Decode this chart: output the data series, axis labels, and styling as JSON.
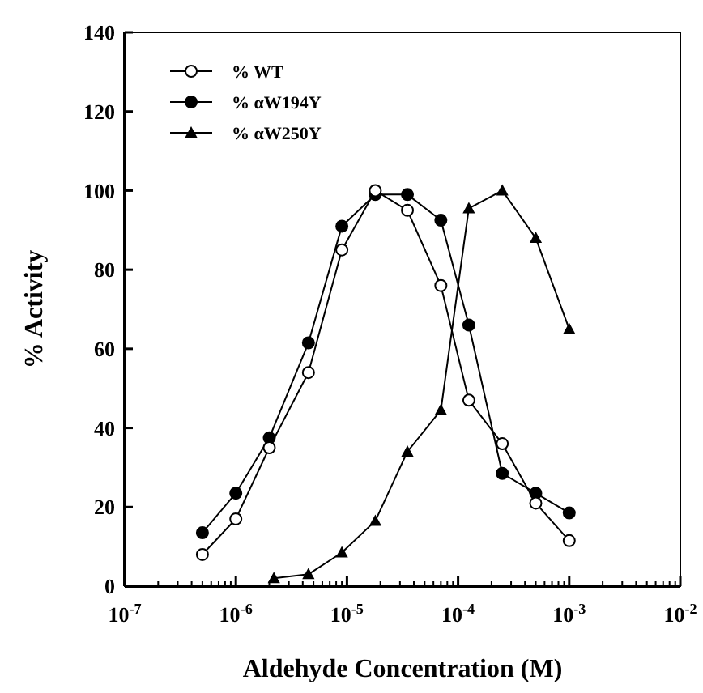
{
  "chart_data": {
    "type": "line",
    "xlabel": "Aldehyde Concentration (M)",
    "ylabel": "% Activity",
    "log": "x",
    "xlim": [
      1e-07,
      0.01
    ],
    "xticks": [
      {
        "value": 1e-07,
        "label": "10$^{-7}$"
      },
      {
        "value": 1e-06,
        "label": "10$^{-6}$"
      },
      {
        "value": 1e-05,
        "label": "10$^{-5}$"
      },
      {
        "value": 0.0001,
        "label": "10$^{-4}$"
      },
      {
        "value": 0.001,
        "label": "10$^{-3}$"
      },
      {
        "value": 0.01,
        "label": "10$^{-2}$"
      }
    ],
    "ylim": [
      0,
      140
    ],
    "yticks": [
      0,
      20,
      40,
      60,
      80,
      100,
      120,
      140
    ],
    "grid": false,
    "legend": "top left",
    "line_style": "solid",
    "x": [
      5e-07,
      1e-06,
      2e-06,
      4.5e-06,
      9e-06,
      1.8e-05,
      3.5e-05,
      7e-05,
      0.000125,
      0.00025,
      0.0005,
      0.001
    ],
    "series": [
      {
        "name": "% WT",
        "color": "#000000",
        "marker": "circle-open",
        "values": [
          8,
          17,
          35,
          54,
          85,
          100,
          95,
          76,
          47,
          36,
          21,
          11.5
        ]
      },
      {
        "name": "% αW194Y",
        "color": "#000000",
        "marker": "circle",
        "values": [
          13.5,
          23.5,
          37.5,
          61.5,
          91,
          99,
          99,
          92.5,
          66,
          28.5,
          23.5,
          18.5
        ]
      },
      {
        "name": "% αW250Y",
        "color": "#000000",
        "marker": "triangle",
        "x": [
          2.2e-06,
          4.5e-06,
          9e-06,
          1.8e-05,
          3.5e-05,
          7e-05,
          0.000125,
          0.00025,
          0.0005,
          0.001
        ],
        "values": [
          2,
          3,
          8.5,
          16.5,
          34,
          44.5,
          95.5,
          100,
          88,
          65
        ]
      }
    ]
  }
}
